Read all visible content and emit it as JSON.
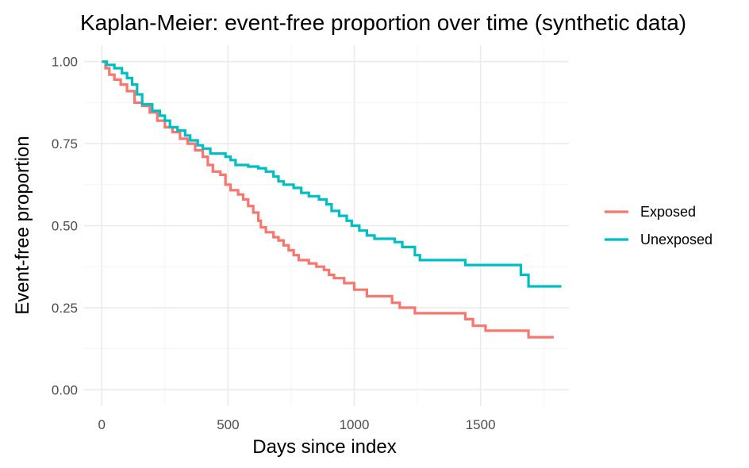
{
  "chart_data": {
    "type": "line",
    "step": true,
    "title": "Kaplan-Meier: event-free proportion over time (synthetic data)",
    "xlabel": "Days since index",
    "ylabel": "Event-free proportion",
    "xlim": [
      -70,
      1850
    ],
    "ylim": [
      -0.05,
      1.05
    ],
    "x_ticks": [
      0,
      500,
      1000,
      1500
    ],
    "x_tick_labels": [
      "0",
      "500",
      "1000",
      "1500"
    ],
    "y_ticks": [
      0,
      0.25,
      0.5,
      0.75,
      1.0
    ],
    "y_tick_labels": [
      "0.00",
      "0.25",
      "0.50",
      "0.75",
      "1.00"
    ],
    "grid": true,
    "legend_position": "right",
    "series": [
      {
        "name": "Exposed",
        "color": "#F8766D",
        "points": [
          [
            0,
            1.0
          ],
          [
            15,
            0.98
          ],
          [
            30,
            0.96
          ],
          [
            50,
            0.945
          ],
          [
            75,
            0.93
          ],
          [
            100,
            0.91
          ],
          [
            130,
            0.875
          ],
          [
            160,
            0.865
          ],
          [
            190,
            0.845
          ],
          [
            220,
            0.82
          ],
          [
            250,
            0.8
          ],
          [
            280,
            0.785
          ],
          [
            310,
            0.765
          ],
          [
            340,
            0.75
          ],
          [
            370,
            0.73
          ],
          [
            400,
            0.71
          ],
          [
            420,
            0.685
          ],
          [
            440,
            0.665
          ],
          [
            470,
            0.655
          ],
          [
            490,
            0.625
          ],
          [
            510,
            0.608
          ],
          [
            540,
            0.595
          ],
          [
            560,
            0.58
          ],
          [
            580,
            0.56
          ],
          [
            600,
            0.54
          ],
          [
            620,
            0.515
          ],
          [
            630,
            0.495
          ],
          [
            650,
            0.48
          ],
          [
            680,
            0.465
          ],
          [
            700,
            0.455
          ],
          [
            720,
            0.44
          ],
          [
            740,
            0.425
          ],
          [
            760,
            0.41
          ],
          [
            780,
            0.395
          ],
          [
            820,
            0.385
          ],
          [
            850,
            0.375
          ],
          [
            880,
            0.365
          ],
          [
            900,
            0.35
          ],
          [
            920,
            0.34
          ],
          [
            960,
            0.325
          ],
          [
            1000,
            0.305
          ],
          [
            1050,
            0.285
          ],
          [
            1150,
            0.265
          ],
          [
            1180,
            0.25
          ],
          [
            1240,
            0.233
          ],
          [
            1370,
            0.233
          ],
          [
            1440,
            0.215
          ],
          [
            1470,
            0.195
          ],
          [
            1520,
            0.18
          ],
          [
            1690,
            0.16
          ],
          [
            1790,
            0.16
          ]
        ]
      },
      {
        "name": "Unexposed",
        "color": "#00BFC4",
        "points": [
          [
            0,
            1.0
          ],
          [
            20,
            0.99
          ],
          [
            50,
            0.98
          ],
          [
            80,
            0.965
          ],
          [
            100,
            0.95
          ],
          [
            120,
            0.93
          ],
          [
            140,
            0.9
          ],
          [
            160,
            0.87
          ],
          [
            200,
            0.85
          ],
          [
            230,
            0.835
          ],
          [
            250,
            0.82
          ],
          [
            270,
            0.8
          ],
          [
            300,
            0.79
          ],
          [
            330,
            0.775
          ],
          [
            350,
            0.76
          ],
          [
            380,
            0.745
          ],
          [
            400,
            0.735
          ],
          [
            430,
            0.72
          ],
          [
            490,
            0.71
          ],
          [
            510,
            0.7
          ],
          [
            530,
            0.685
          ],
          [
            580,
            0.68
          ],
          [
            620,
            0.675
          ],
          [
            650,
            0.665
          ],
          [
            680,
            0.65
          ],
          [
            700,
            0.635
          ],
          [
            720,
            0.625
          ],
          [
            760,
            0.615
          ],
          [
            790,
            0.6
          ],
          [
            820,
            0.59
          ],
          [
            860,
            0.58
          ],
          [
            890,
            0.565
          ],
          [
            910,
            0.545
          ],
          [
            940,
            0.53
          ],
          [
            970,
            0.515
          ],
          [
            990,
            0.5
          ],
          [
            1020,
            0.485
          ],
          [
            1050,
            0.47
          ],
          [
            1080,
            0.46
          ],
          [
            1160,
            0.45
          ],
          [
            1190,
            0.435
          ],
          [
            1240,
            0.41
          ],
          [
            1260,
            0.395
          ],
          [
            1440,
            0.38
          ],
          [
            1660,
            0.35
          ],
          [
            1690,
            0.315
          ],
          [
            1820,
            0.315
          ]
        ]
      }
    ]
  }
}
